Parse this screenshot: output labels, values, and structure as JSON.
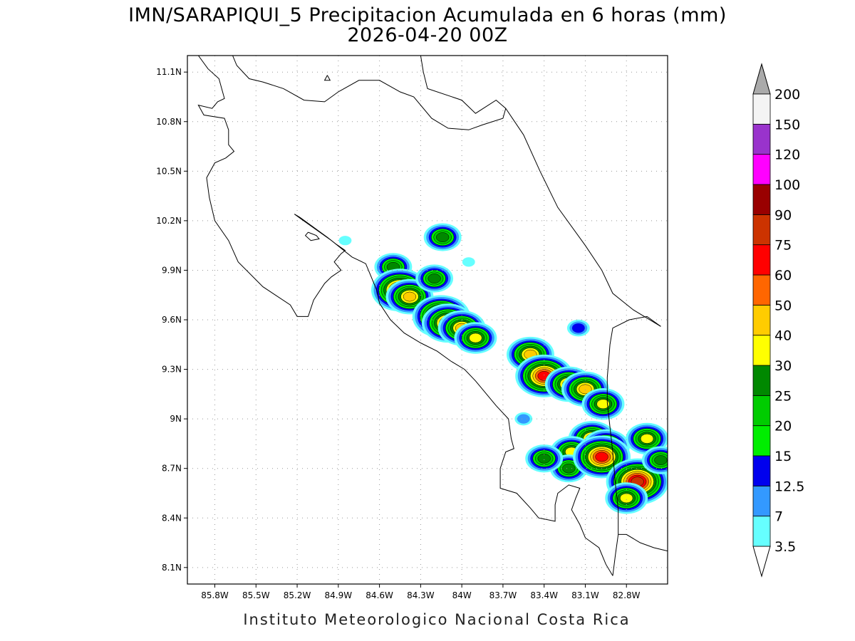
{
  "title": "IMN/SARAPIQUI_5 Precipitacion Acumulada en 6 horas (mm)",
  "subtitle": "2026-04-20 00Z",
  "footer": "Instituto Meteorologico Nacional Costa Rica",
  "map": {
    "lon_range": [
      -86.0,
      -82.5
    ],
    "lat_range": [
      8.0,
      11.2
    ],
    "lon_ticks": [
      {
        "value": -85.8,
        "label": "85.8W"
      },
      {
        "value": -85.5,
        "label": "85.5W"
      },
      {
        "value": -85.2,
        "label": "85.2W"
      },
      {
        "value": -84.9,
        "label": "84.9W"
      },
      {
        "value": -84.6,
        "label": "84.6W"
      },
      {
        "value": -84.3,
        "label": "84.3W"
      },
      {
        "value": -84.0,
        "label": "84W"
      },
      {
        "value": -83.7,
        "label": "83.7W"
      },
      {
        "value": -83.4,
        "label": "83.4W"
      },
      {
        "value": -83.1,
        "label": "83.1W"
      },
      {
        "value": -82.8,
        "label": "82.8W"
      }
    ],
    "lat_ticks": [
      {
        "value": 11.1,
        "label": "11.1N"
      },
      {
        "value": 10.8,
        "label": "10.8N"
      },
      {
        "value": 10.5,
        "label": "10.5N"
      },
      {
        "value": 10.2,
        "label": "10.2N"
      },
      {
        "value": 9.9,
        "label": "9.9N"
      },
      {
        "value": 9.6,
        "label": "9.6N"
      },
      {
        "value": 9.3,
        "label": "9.3N"
      },
      {
        "value": 9.0,
        "label": "9N"
      },
      {
        "value": 8.7,
        "label": "8.7N"
      },
      {
        "value": 8.4,
        "label": "8.4N"
      },
      {
        "value": 8.1,
        "label": "8.1N"
      }
    ],
    "grid": "dotted",
    "coastline": [
      [
        -85.92,
        11.2
      ],
      [
        -85.85,
        11.12
      ],
      [
        -85.77,
        11.06
      ],
      [
        -85.73,
        10.94
      ],
      [
        -85.78,
        10.92
      ],
      [
        -85.82,
        10.88
      ],
      [
        -85.92,
        10.9
      ],
      [
        -85.88,
        10.84
      ],
      [
        -85.73,
        10.82
      ],
      [
        -85.7,
        10.75
      ],
      [
        -85.7,
        10.66
      ],
      [
        -85.66,
        10.62
      ],
      [
        -85.72,
        10.58
      ],
      [
        -85.8,
        10.55
      ],
      [
        -85.86,
        10.46
      ],
      [
        -85.84,
        10.34
      ],
      [
        -85.8,
        10.2
      ],
      [
        -85.7,
        10.08
      ],
      [
        -85.63,
        9.95
      ],
      [
        -85.45,
        9.8
      ],
      [
        -85.25,
        9.69
      ],
      [
        -85.2,
        9.62
      ],
      [
        -85.12,
        9.62
      ],
      [
        -85.08,
        9.72
      ],
      [
        -85.0,
        9.82
      ],
      [
        -84.95,
        9.86
      ],
      [
        -84.88,
        9.9
      ],
      [
        -84.93,
        9.95
      ],
      [
        -84.88,
        10.0
      ],
      [
        -84.85,
        10.02
      ],
      [
        -84.92,
        10.06
      ],
      [
        -84.98,
        10.1
      ],
      [
        -85.08,
        10.16
      ],
      [
        -85.18,
        10.22
      ],
      [
        -85.22,
        10.24
      ],
      [
        -85.17,
        10.21
      ],
      [
        -84.95,
        10.08
      ],
      [
        -84.8,
        9.98
      ],
      [
        -84.7,
        9.94
      ],
      [
        -84.66,
        9.86
      ],
      [
        -84.62,
        9.78
      ],
      [
        -84.6,
        9.7
      ],
      [
        -84.52,
        9.6
      ],
      [
        -84.42,
        9.52
      ],
      [
        -84.3,
        9.46
      ],
      [
        -84.18,
        9.41
      ],
      [
        -84.08,
        9.35
      ],
      [
        -83.98,
        9.3
      ],
      [
        -83.9,
        9.23
      ],
      [
        -83.82,
        9.15
      ],
      [
        -83.75,
        9.08
      ],
      [
        -83.66,
        9.0
      ],
      [
        -83.64,
        8.88
      ],
      [
        -83.62,
        8.82
      ],
      [
        -83.68,
        8.8
      ],
      [
        -83.72,
        8.7
      ],
      [
        -83.72,
        8.58
      ],
      [
        -83.6,
        8.55
      ],
      [
        -83.5,
        8.46
      ],
      [
        -83.44,
        8.4
      ],
      [
        -83.32,
        8.38
      ],
      [
        -83.32,
        8.48
      ],
      [
        -83.3,
        8.55
      ],
      [
        -83.22,
        8.6
      ],
      [
        -83.14,
        8.58
      ],
      [
        -83.17,
        8.52
      ],
      [
        -83.2,
        8.45
      ],
      [
        -83.14,
        8.36
      ],
      [
        -83.1,
        8.28
      ],
      [
        -83.0,
        8.22
      ],
      [
        -82.95,
        8.12
      ],
      [
        -82.9,
        8.05
      ]
    ],
    "caribbean_coast": [
      [
        -84.3,
        11.2
      ],
      [
        -84.28,
        11.1
      ],
      [
        -84.25,
        11.0
      ],
      [
        -84.0,
        10.93
      ],
      [
        -83.9,
        10.85
      ],
      [
        -83.75,
        10.93
      ],
      [
        -83.68,
        10.88
      ],
      [
        -83.55,
        10.72
      ],
      [
        -83.43,
        10.5
      ],
      [
        -83.3,
        10.28
      ],
      [
        -83.1,
        10.05
      ],
      [
        -82.98,
        9.9
      ],
      [
        -82.9,
        9.76
      ],
      [
        -82.75,
        9.66
      ],
      [
        -82.55,
        9.56
      ]
    ],
    "north_border": [
      [
        -85.68,
        11.22
      ],
      [
        -85.64,
        11.14
      ],
      [
        -85.55,
        11.06
      ],
      [
        -85.45,
        11.04
      ],
      [
        -85.3,
        11.0
      ],
      [
        -85.15,
        10.93
      ],
      [
        -85.0,
        10.92
      ],
      [
        -84.9,
        10.98
      ],
      [
        -84.75,
        11.05
      ],
      [
        -84.6,
        11.05
      ],
      [
        -84.45,
        10.98
      ],
      [
        -84.35,
        10.95
      ],
      [
        -84.22,
        10.82
      ],
      [
        -84.1,
        10.76
      ],
      [
        -83.95,
        10.75
      ],
      [
        -83.85,
        10.78
      ],
      [
        -83.7,
        10.82
      ],
      [
        -83.68,
        10.88
      ]
    ],
    "south_border": [
      [
        -82.55,
        9.56
      ],
      [
        -82.65,
        9.62
      ],
      [
        -82.78,
        9.6
      ],
      [
        -82.9,
        9.55
      ],
      [
        -82.92,
        9.45
      ],
      [
        -82.94,
        9.25
      ],
      [
        -82.94,
        9.1
      ],
      [
        -82.92,
        8.95
      ],
      [
        -82.9,
        8.8
      ],
      [
        -82.88,
        8.6
      ],
      [
        -82.86,
        8.45
      ],
      [
        -82.86,
        8.3
      ],
      [
        -82.88,
        8.18
      ],
      [
        -82.9,
        8.05
      ]
    ],
    "panama_coast": [
      [
        -82.5,
        8.2
      ],
      [
        -82.6,
        8.22
      ],
      [
        -82.7,
        8.25
      ],
      [
        -82.8,
        8.3
      ],
      [
        -82.86,
        8.3
      ]
    ],
    "island": [
      [
        -85.12,
        10.13
      ],
      [
        -85.06,
        10.11
      ],
      [
        -85.04,
        10.09
      ],
      [
        -85.1,
        10.08
      ],
      [
        -85.14,
        10.11
      ],
      [
        -85.12,
        10.13
      ]
    ],
    "bay_island": [
      [
        -84.98,
        11.08
      ],
      [
        -84.96,
        11.05
      ],
      [
        -85.0,
        11.05
      ],
      [
        -84.98,
        11.08
      ]
    ]
  },
  "chart_data": {
    "type": "heatmap",
    "title": "IMN/SARAPIQUI_5 Precipitacion Acumulada en 6 horas (mm)",
    "subtitle": "2026-04-20 00Z",
    "units": "mm",
    "levels": [
      3.5,
      7,
      12.5,
      15,
      20,
      25,
      30,
      40,
      50,
      60,
      75,
      90,
      100,
      120,
      150,
      200
    ],
    "colors": [
      "#66ffff",
      "#3399ff",
      "#0000ee",
      "#00ee00",
      "#00cc00",
      "#008800",
      "#ffff00",
      "#ffcc00",
      "#ff6600",
      "#ff0000",
      "#cc3300",
      "#990000",
      "#ff00ff",
      "#9933cc",
      "#f4f4f4",
      "#aaaaaa"
    ],
    "cells": [
      {
        "lon": -84.5,
        "lat": 9.92,
        "value": 25
      },
      {
        "lon": -84.45,
        "lat": 9.78,
        "value": 60
      },
      {
        "lon": -84.38,
        "lat": 9.74,
        "value": 40
      },
      {
        "lon": -84.14,
        "lat": 10.1,
        "value": 25
      },
      {
        "lon": -84.2,
        "lat": 9.85,
        "value": 25
      },
      {
        "lon": -84.15,
        "lat": 9.62,
        "value": 60
      },
      {
        "lon": -84.1,
        "lat": 9.58,
        "value": 50
      },
      {
        "lon": -84.0,
        "lat": 9.55,
        "value": 40
      },
      {
        "lon": -83.9,
        "lat": 9.49,
        "value": 30
      },
      {
        "lon": -83.5,
        "lat": 9.39,
        "value": 40
      },
      {
        "lon": -83.4,
        "lat": 9.26,
        "value": 60
      },
      {
        "lon": -83.22,
        "lat": 9.21,
        "value": 40
      },
      {
        "lon": -83.1,
        "lat": 9.18,
        "value": 40
      },
      {
        "lon": -82.97,
        "lat": 9.09,
        "value": 30
      },
      {
        "lon": -83.05,
        "lat": 8.88,
        "value": 40
      },
      {
        "lon": -82.95,
        "lat": 8.83,
        "value": 40
      },
      {
        "lon": -83.2,
        "lat": 8.8,
        "value": 30
      },
      {
        "lon": -83.22,
        "lat": 8.7,
        "value": 25
      },
      {
        "lon": -83.4,
        "lat": 8.76,
        "value": 25
      },
      {
        "lon": -82.98,
        "lat": 8.77,
        "value": 60
      },
      {
        "lon": -82.72,
        "lat": 8.62,
        "value": 75
      },
      {
        "lon": -82.8,
        "lat": 8.52,
        "value": 30
      },
      {
        "lon": -82.65,
        "lat": 8.88,
        "value": 30
      },
      {
        "lon": -82.55,
        "lat": 8.75,
        "value": 25
      },
      {
        "lon": -83.55,
        "lat": 9.0,
        "value": 7
      },
      {
        "lon": -83.15,
        "lat": 9.55,
        "value": 12.5
      },
      {
        "lon": -84.85,
        "lat": 10.08,
        "value": 3.5
      },
      {
        "lon": -83.95,
        "lat": 9.95,
        "value": 3.5
      }
    ]
  }
}
